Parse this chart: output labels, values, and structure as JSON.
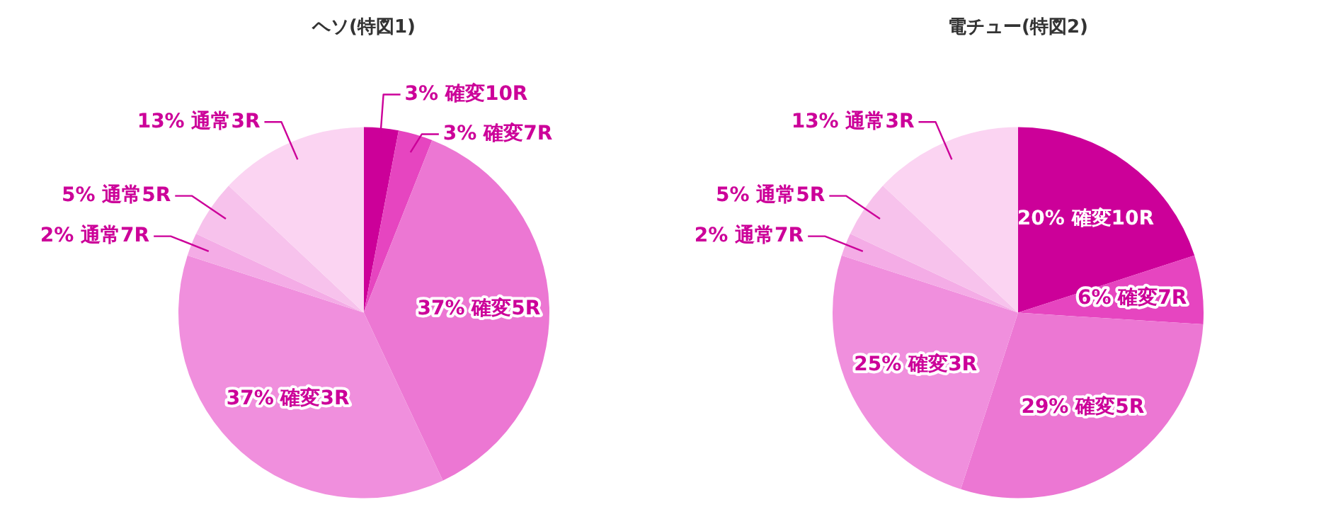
{
  "chart_data": [
    {
      "type": "pie",
      "title": "ヘソ(特図1)",
      "categories": [
        "確変10R",
        "確変7R",
        "確変5R",
        "確変3R",
        "通常7R",
        "通常5R",
        "通常3R"
      ],
      "values": [
        3,
        3,
        37,
        37,
        2,
        5,
        13
      ],
      "value_labels": [
        "3%",
        "3%",
        "37%",
        "37%",
        "2%",
        "5%",
        "13%"
      ],
      "colors": [
        "#cc0099",
        "#e645c0",
        "#ec77d3",
        "#f08fdd",
        "#f4ace6",
        "#f7c2ec",
        "#fbd4f2"
      ],
      "legend": false
    },
    {
      "type": "pie",
      "title": "電チュー(特図2)",
      "categories": [
        "確変10R",
        "確変7R",
        "確変5R",
        "確変3R",
        "通常7R",
        "通常5R",
        "通常3R"
      ],
      "values": [
        20,
        6,
        29,
        25,
        2,
        5,
        13
      ],
      "value_labels": [
        "20%",
        "6%",
        "29%",
        "25%",
        "2%",
        "5%",
        "13%"
      ],
      "colors": [
        "#cc0099",
        "#e645c0",
        "#ec77d3",
        "#f08fdd",
        "#f4ace6",
        "#f7c2ec",
        "#fbd4f2"
      ],
      "legend": false
    }
  ]
}
